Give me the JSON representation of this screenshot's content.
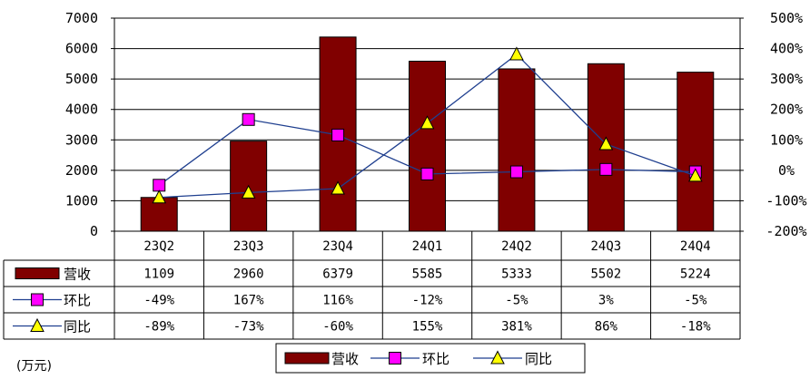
{
  "chart_data": {
    "type": "bar",
    "categories": [
      "23Q2",
      "23Q3",
      "23Q4",
      "24Q1",
      "24Q2",
      "24Q3",
      "24Q4"
    ],
    "series": [
      {
        "name": "营收",
        "kind": "bar",
        "axis": "left",
        "values": [
          1109,
          2960,
          6379,
          5585,
          5333,
          5502,
          5224
        ],
        "labels": [
          "1109",
          "2960",
          "6379",
          "5585",
          "5333",
          "5502",
          "5224"
        ]
      },
      {
        "name": "环比",
        "kind": "line",
        "axis": "right",
        "marker": "square",
        "values": [
          -49,
          167,
          116,
          -12,
          -5,
          3,
          -5
        ],
        "labels": [
          "-49%",
          "167%",
          "116%",
          "-12%",
          "-5%",
          "3%",
          "-5%"
        ]
      },
      {
        "name": "同比",
        "kind": "line",
        "axis": "right",
        "marker": "triangle",
        "values": [
          -89,
          -73,
          -60,
          155,
          381,
          86,
          -18
        ],
        "labels": [
          "-89%",
          "-73%",
          "-60%",
          "155%",
          "381%",
          "86%",
          "-18%"
        ]
      }
    ],
    "y_left": {
      "min": 0,
      "max": 7000,
      "step": 1000,
      "ticks": [
        "0",
        "1000",
        "2000",
        "3000",
        "4000",
        "5000",
        "6000",
        "7000"
      ]
    },
    "y_right": {
      "min": -200,
      "max": 500,
      "step": 100,
      "ticks": [
        "-200%",
        "-100%",
        "0%",
        "100%",
        "200%",
        "300%",
        "400%",
        "500%"
      ]
    },
    "unit_note": "(万元)",
    "legend_position": "bottom",
    "data_table": true,
    "grid": true,
    "colors": {
      "bar": "#800000",
      "line": "#1f3f8f",
      "square": "#ff00ff",
      "triangle": "#ffff00"
    }
  }
}
